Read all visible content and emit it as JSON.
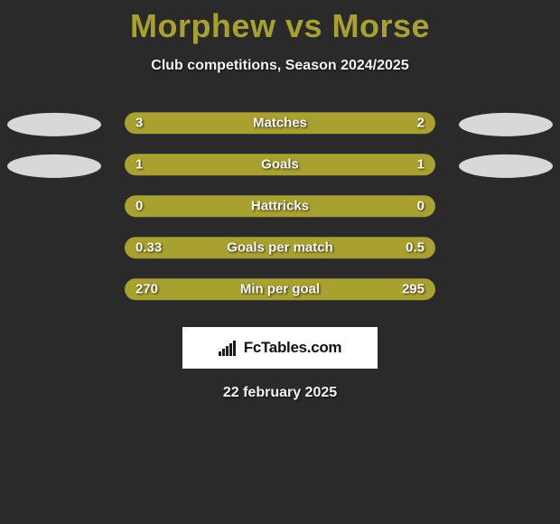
{
  "title_color": "#a8a130",
  "title": "Morphew vs Morse",
  "subtitle": "Club competitions, Season 2024/2025",
  "date": "22 february 2025",
  "brand_text": "FcTables.com",
  "bar_bg_color": "#6a6a6a",
  "bar_fill_color": "#a8a130",
  "ellipse_color": "#d8d8d8",
  "stats": [
    {
      "label": "Matches",
      "left_val": "3",
      "right_val": "2",
      "left_pct": 60,
      "right_pct": 40,
      "show_ellipses": true
    },
    {
      "label": "Goals",
      "left_val": "1",
      "right_val": "1",
      "left_pct": 50,
      "right_pct": 50,
      "show_ellipses": true
    },
    {
      "label": "Hattricks",
      "left_val": "0",
      "right_val": "0",
      "left_pct": 50,
      "right_pct": 50,
      "show_ellipses": false
    },
    {
      "label": "Goals per match",
      "left_val": "0.33",
      "right_val": "0.5",
      "left_pct": 40,
      "right_pct": 60,
      "show_ellipses": false
    },
    {
      "label": "Min per goal",
      "left_val": "270",
      "right_val": "295",
      "left_pct": 48,
      "right_pct": 52,
      "show_ellipses": false
    }
  ]
}
